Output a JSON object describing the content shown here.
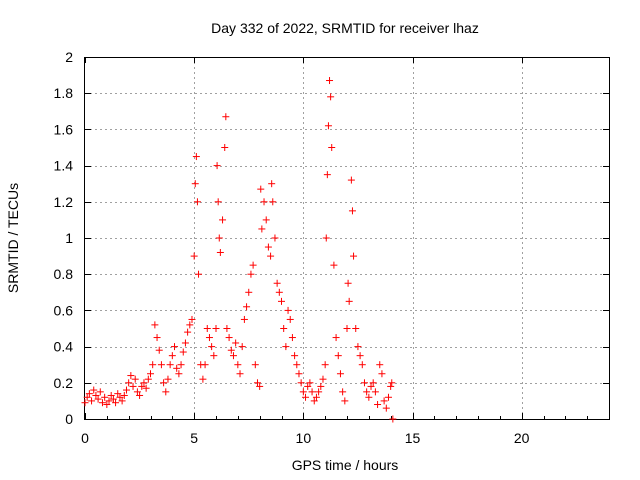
{
  "chart_data": {
    "type": "scatter",
    "title": "Day 332 of 2022, SRMTID for receiver lhaz",
    "xlabel": "GPS time / hours",
    "ylabel": "SRMTID / TECUs",
    "xlim": [
      0,
      24
    ],
    "ylim": [
      0,
      2
    ],
    "xticks": [
      0,
      5,
      10,
      15,
      20
    ],
    "xtick_labels": [
      "0",
      "5",
      "10",
      "15",
      "20"
    ],
    "yticks": [
      0,
      0.2,
      0.4,
      0.6,
      0.8,
      1,
      1.2,
      1.4,
      1.6,
      1.8,
      2
    ],
    "ytick_labels": [
      "0",
      "0.2",
      "0.4",
      "0.6",
      "0.8",
      "1",
      "1.2",
      "1.4",
      "1.6",
      "1.8",
      "2"
    ],
    "grid": true,
    "marker": "plus",
    "color": "#ff0000",
    "series": [
      {
        "name": "SRMTID",
        "points": [
          [
            0.0,
            0.09
          ],
          [
            0.1,
            0.12
          ],
          [
            0.2,
            0.14
          ],
          [
            0.3,
            0.1
          ],
          [
            0.4,
            0.16
          ],
          [
            0.5,
            0.13
          ],
          [
            0.6,
            0.11
          ],
          [
            0.7,
            0.15
          ],
          [
            0.8,
            0.09
          ],
          [
            0.9,
            0.12
          ],
          [
            1.0,
            0.08
          ],
          [
            1.1,
            0.1
          ],
          [
            1.2,
            0.13
          ],
          [
            1.3,
            0.11
          ],
          [
            1.4,
            0.09
          ],
          [
            1.5,
            0.14
          ],
          [
            1.6,
            0.12
          ],
          [
            1.7,
            0.1
          ],
          [
            1.8,
            0.13
          ],
          [
            1.9,
            0.16
          ],
          [
            2.0,
            0.2
          ],
          [
            2.1,
            0.24
          ],
          [
            2.2,
            0.18
          ],
          [
            2.3,
            0.22
          ],
          [
            2.4,
            0.15
          ],
          [
            2.5,
            0.13
          ],
          [
            2.6,
            0.18
          ],
          [
            2.7,
            0.2
          ],
          [
            2.8,
            0.17
          ],
          [
            2.9,
            0.22
          ],
          [
            3.0,
            0.25
          ],
          [
            3.1,
            0.3
          ],
          [
            3.2,
            0.52
          ],
          [
            3.3,
            0.45
          ],
          [
            3.4,
            0.38
          ],
          [
            3.5,
            0.3
          ],
          [
            3.6,
            0.2
          ],
          [
            3.7,
            0.15
          ],
          [
            3.8,
            0.22
          ],
          [
            3.9,
            0.3
          ],
          [
            4.0,
            0.35
          ],
          [
            4.1,
            0.4
          ],
          [
            4.2,
            0.28
          ],
          [
            4.3,
            0.25
          ],
          [
            4.4,
            0.3
          ],
          [
            4.5,
            0.37
          ],
          [
            4.6,
            0.42
          ],
          [
            4.7,
            0.48
          ],
          [
            4.8,
            0.52
          ],
          [
            4.9,
            0.55
          ],
          [
            5.0,
            0.9
          ],
          [
            5.05,
            1.3
          ],
          [
            5.1,
            1.45
          ],
          [
            5.15,
            1.2
          ],
          [
            5.2,
            0.8
          ],
          [
            5.3,
            0.3
          ],
          [
            5.4,
            0.22
          ],
          [
            5.5,
            0.3
          ],
          [
            5.6,
            0.5
          ],
          [
            5.7,
            0.45
          ],
          [
            5.8,
            0.4
          ],
          [
            5.9,
            0.35
          ],
          [
            6.0,
            0.5
          ],
          [
            6.05,
            1.4
          ],
          [
            6.1,
            1.2
          ],
          [
            6.15,
            1.0
          ],
          [
            6.2,
            0.92
          ],
          [
            6.3,
            1.1
          ],
          [
            6.4,
            1.5
          ],
          [
            6.45,
            1.67
          ],
          [
            6.5,
            0.5
          ],
          [
            6.6,
            0.45
          ],
          [
            6.7,
            0.38
          ],
          [
            6.8,
            0.35
          ],
          [
            6.9,
            0.42
          ],
          [
            7.0,
            0.3
          ],
          [
            7.1,
            0.25
          ],
          [
            7.2,
            0.4
          ],
          [
            7.3,
            0.55
          ],
          [
            7.4,
            0.62
          ],
          [
            7.5,
            0.7
          ],
          [
            7.6,
            0.8
          ],
          [
            7.7,
            0.85
          ],
          [
            7.8,
            0.3
          ],
          [
            7.9,
            0.2
          ],
          [
            8.0,
            0.18
          ],
          [
            8.05,
            1.27
          ],
          [
            8.1,
            1.05
          ],
          [
            8.2,
            1.2
          ],
          [
            8.3,
            1.1
          ],
          [
            8.4,
            0.95
          ],
          [
            8.5,
            0.9
          ],
          [
            8.55,
            1.3
          ],
          [
            8.6,
            1.2
          ],
          [
            8.7,
            1.0
          ],
          [
            8.8,
            0.75
          ],
          [
            8.9,
            0.7
          ],
          [
            9.0,
            0.65
          ],
          [
            9.1,
            0.5
          ],
          [
            9.2,
            0.4
          ],
          [
            9.3,
            0.6
          ],
          [
            9.4,
            0.55
          ],
          [
            9.5,
            0.45
          ],
          [
            9.6,
            0.35
          ],
          [
            9.7,
            0.3
          ],
          [
            9.8,
            0.25
          ],
          [
            9.9,
            0.2
          ],
          [
            10.0,
            0.15
          ],
          [
            10.1,
            0.12
          ],
          [
            10.2,
            0.18
          ],
          [
            10.3,
            0.2
          ],
          [
            10.4,
            0.15
          ],
          [
            10.5,
            0.1
          ],
          [
            10.6,
            0.12
          ],
          [
            10.7,
            0.15
          ],
          [
            10.8,
            0.18
          ],
          [
            10.9,
            0.22
          ],
          [
            11.0,
            0.3
          ],
          [
            11.05,
            1.0
          ],
          [
            11.1,
            1.35
          ],
          [
            11.15,
            1.62
          ],
          [
            11.2,
            1.87
          ],
          [
            11.25,
            1.78
          ],
          [
            11.3,
            1.5
          ],
          [
            11.4,
            0.85
          ],
          [
            11.5,
            0.45
          ],
          [
            11.6,
            0.35
          ],
          [
            11.7,
            0.25
          ],
          [
            11.8,
            0.15
          ],
          [
            11.9,
            0.1
          ],
          [
            12.0,
            0.5
          ],
          [
            12.05,
            0.75
          ],
          [
            12.1,
            0.65
          ],
          [
            12.2,
            1.32
          ],
          [
            12.25,
            1.15
          ],
          [
            12.3,
            0.9
          ],
          [
            12.4,
            0.5
          ],
          [
            12.5,
            0.4
          ],
          [
            12.6,
            0.35
          ],
          [
            12.7,
            0.3
          ],
          [
            12.8,
            0.2
          ],
          [
            12.9,
            0.15
          ],
          [
            13.0,
            0.12
          ],
          [
            13.1,
            0.18
          ],
          [
            13.2,
            0.2
          ],
          [
            13.3,
            0.15
          ],
          [
            13.4,
            0.08
          ],
          [
            13.5,
            0.3
          ],
          [
            13.6,
            0.25
          ],
          [
            13.7,
            0.1
          ],
          [
            13.8,
            0.06
          ],
          [
            13.9,
            0.12
          ],
          [
            14.0,
            0.18
          ],
          [
            14.05,
            0.2
          ],
          [
            14.1,
            0.0
          ]
        ]
      }
    ]
  }
}
